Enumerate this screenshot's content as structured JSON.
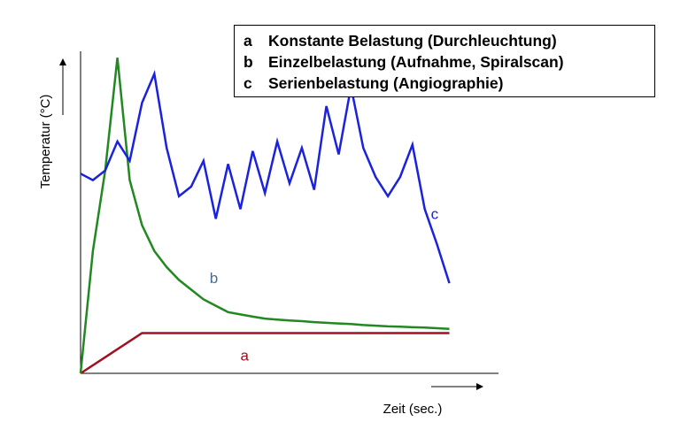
{
  "chart_data": {
    "type": "line",
    "xlabel": "Zeit (sec.)",
    "ylabel": "Temperatur (°C)",
    "x": [
      0,
      1,
      2,
      3,
      4,
      5,
      6,
      7,
      8,
      9,
      10,
      11,
      12,
      13,
      14,
      15,
      16,
      17,
      18,
      19,
      20,
      21,
      22,
      23,
      24,
      25,
      26,
      27,
      28,
      29,
      30,
      31,
      32,
      33,
      34,
      35,
      36,
      37,
      38,
      39,
      40,
      41,
      42,
      43,
      44,
      45,
      46,
      47,
      48,
      49,
      50,
      51,
      52,
      53,
      54,
      55,
      56,
      57,
      58,
      59,
      60
    ],
    "xlim": [
      0,
      68
    ],
    "ylim": [
      0,
      100
    ],
    "grid": false,
    "series": [
      {
        "name": "a",
        "color": "#a01020",
        "points": [
          [
            0,
            0
          ],
          [
            4,
            5
          ],
          [
            10,
            12.5
          ],
          [
            60,
            12.5
          ]
        ]
      },
      {
        "name": "b",
        "color": "#228822",
        "points": [
          [
            0,
            0
          ],
          [
            2,
            38
          ],
          [
            4,
            63
          ],
          [
            6,
            98
          ],
          [
            8,
            60
          ],
          [
            10,
            46
          ],
          [
            12,
            38
          ],
          [
            14,
            33
          ],
          [
            16,
            29
          ],
          [
            18,
            26
          ],
          [
            20,
            23
          ],
          [
            22,
            21
          ],
          [
            24,
            19
          ],
          [
            26,
            18.3
          ],
          [
            28,
            17.6
          ],
          [
            30,
            17
          ],
          [
            32,
            16.7
          ],
          [
            34,
            16.4
          ],
          [
            36,
            16.2
          ],
          [
            38,
            15.9
          ],
          [
            40,
            15.7
          ],
          [
            42,
            15.5
          ],
          [
            44,
            15.3
          ],
          [
            46,
            15
          ],
          [
            48,
            14.8
          ],
          [
            50,
            14.6
          ],
          [
            52,
            14.5
          ],
          [
            54,
            14.3
          ],
          [
            56,
            14.2
          ],
          [
            58,
            14
          ],
          [
            60,
            13.8
          ]
        ]
      },
      {
        "name": "c",
        "color": "#1a22dd",
        "points": [
          [
            0,
            62
          ],
          [
            2,
            60
          ],
          [
            4,
            63
          ],
          [
            6,
            72
          ],
          [
            8,
            66
          ],
          [
            10,
            84
          ],
          [
            12,
            93
          ],
          [
            14,
            70
          ],
          [
            16,
            55
          ],
          [
            18,
            58
          ],
          [
            20,
            66
          ],
          [
            22,
            48
          ],
          [
            24,
            65
          ],
          [
            26,
            51
          ],
          [
            28,
            69
          ],
          [
            30,
            56
          ],
          [
            32,
            72
          ],
          [
            34,
            59
          ],
          [
            36,
            70
          ],
          [
            38,
            57
          ],
          [
            40,
            83
          ],
          [
            42,
            68
          ],
          [
            44,
            89
          ],
          [
            46,
            70
          ],
          [
            48,
            61
          ],
          [
            50,
            55
          ],
          [
            52,
            61
          ],
          [
            54,
            71
          ],
          [
            56,
            51
          ],
          [
            58,
            40
          ],
          [
            60,
            28
          ]
        ]
      }
    ],
    "legend": {
      "position": "top-right",
      "entries": [
        {
          "key": "a",
          "text": "Konstante Belastung (Durchleuchtung)"
        },
        {
          "key": "b",
          "text": "Einzelbelastung (Aufnahme, Spiralscan)"
        },
        {
          "key": "c",
          "text": "Serienbelastung (Angiographie)"
        }
      ]
    },
    "annotations": [
      {
        "text": "a",
        "color": "#a01020",
        "x": 26,
        "y": 4
      },
      {
        "text": "b",
        "color": "#4a6a8a",
        "x": 21,
        "y": 28
      },
      {
        "text": "c",
        "color": "#1a22dd",
        "x": 57,
        "y": 48
      }
    ]
  }
}
